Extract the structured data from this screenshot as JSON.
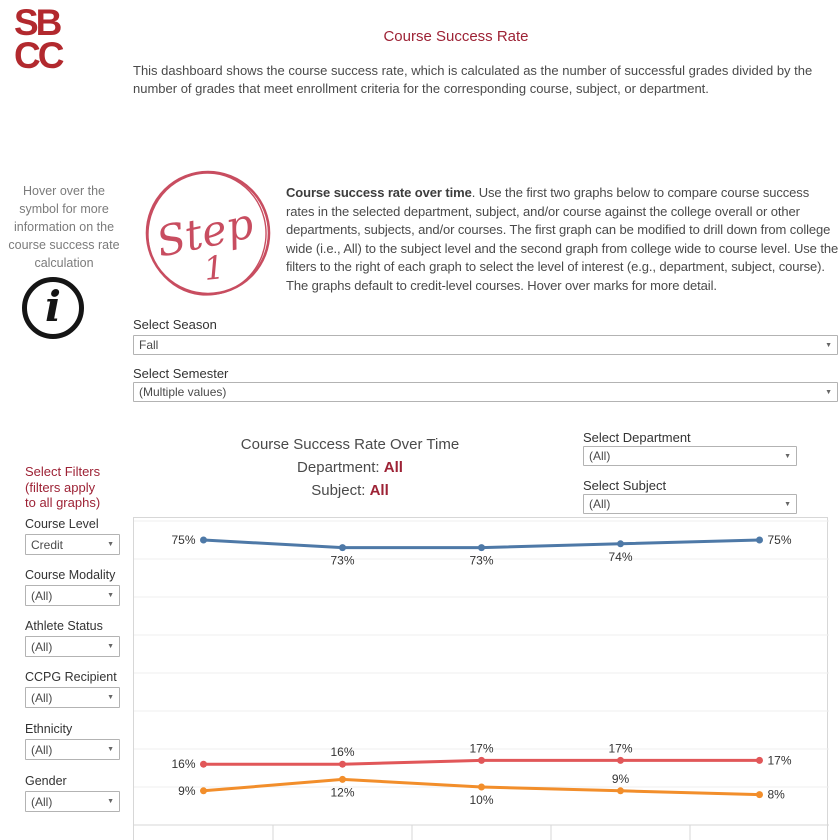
{
  "colors": {
    "brand": "#9d2235",
    "logo_red": "#b2292e",
    "step_badge": "#c84d60",
    "series_blue": "#4e79a7",
    "series_red": "#e15759",
    "series_orange": "#f28e2b"
  },
  "icons": {
    "dropdown_caret": "▼",
    "info_glyph": "i"
  },
  "logo": {
    "line1": "SB",
    "line2": "CC"
  },
  "header": {
    "title": "Course Success Rate",
    "description": "This dashboard shows the course success rate, which is calculated as the number of successful grades divided by the number of grades that meet enrollment criteria for the corresponding course, subject, or department."
  },
  "info_note": {
    "text": "Hover over the symbol for more information on the course success rate calculation"
  },
  "step1": {
    "badge_word": "Step",
    "badge_number": "1",
    "lead_bold": "Course success rate over time",
    "rest": ". Use the first two graphs below to compare course success rates in the selected department, subject, and/or course against the college overall or other departments, subjects, and/or courses. The first graph can be modified to drill down from college wide (i.e., All) to the subject level and the second graph from college wide to course level. Use the filters to the right of each graph to select the level of interest (e.g., department, subject, course). The graphs default to credit-level courses. Hover over marks for more detail."
  },
  "season_filter": {
    "label": "Select Season",
    "value": "Fall"
  },
  "semester_filter": {
    "label": "Select Semester",
    "value": "(Multiple values)"
  },
  "department_filter": {
    "label": "Select Department",
    "value": "(All)"
  },
  "subject_filter": {
    "label": "Select Subject",
    "value": "(All)"
  },
  "chart_header": {
    "title": "Course Success Rate Over Time",
    "department_label": "Department:",
    "department_value": "All",
    "subject_label": "Subject:",
    "subject_value": "All"
  },
  "sidebar": {
    "heading_lines": [
      "Select Filters",
      "(filters apply",
      "to all graphs)"
    ],
    "filters": [
      {
        "label": "Course Level",
        "value": "Credit"
      },
      {
        "label": "Course Modality",
        "value": "(All)"
      },
      {
        "label": "Athlete Status",
        "value": "(All)"
      },
      {
        "label": "CCPG Recipient",
        "value": "(All)"
      },
      {
        "label": "Ethnicity",
        "value": "(All)"
      },
      {
        "label": "Gender",
        "value": "(All)"
      }
    ]
  },
  "chart_data": {
    "type": "line",
    "title": "Course Success Rate Over Time",
    "xlabel": "",
    "ylabel": "",
    "x_count": 5,
    "x_tick_labels_visible": false,
    "ylim": [
      0,
      81
    ],
    "grid": true,
    "grid_step": 10,
    "legend": "none",
    "series": [
      {
        "name": "success-rate",
        "color": "#4e79a7",
        "values": [
          75,
          73,
          73,
          74,
          75
        ],
        "labels": [
          "75%",
          "73%",
          "73%",
          "74%",
          "75%"
        ],
        "label_placements": [
          "left",
          "below",
          "below",
          "below",
          "right"
        ]
      },
      {
        "name": "non-success-rate",
        "color": "#e15759",
        "values": [
          16,
          16,
          17,
          17,
          17
        ],
        "labels": [
          "16%",
          "16%",
          "17%",
          "17%",
          "17%"
        ],
        "label_placements": [
          "left",
          "above",
          "above",
          "above",
          "right"
        ]
      },
      {
        "name": "withdrawal-rate",
        "color": "#f28e2b",
        "values": [
          9,
          12,
          10,
          9,
          8
        ],
        "labels": [
          "9%",
          "12%",
          "10%",
          "9%",
          "8%"
        ],
        "label_placements": [
          "left",
          "below",
          "below",
          "above",
          "right"
        ]
      }
    ]
  }
}
